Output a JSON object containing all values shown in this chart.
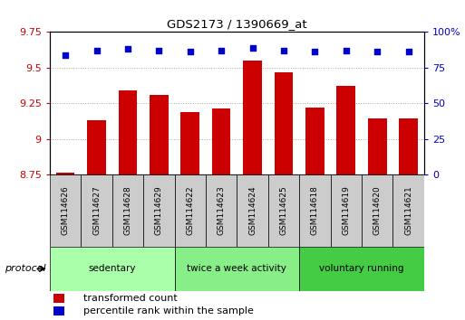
{
  "title": "GDS2173 / 1390669_at",
  "samples": [
    "GSM114626",
    "GSM114627",
    "GSM114628",
    "GSM114629",
    "GSM114622",
    "GSM114623",
    "GSM114624",
    "GSM114625",
    "GSM114618",
    "GSM114619",
    "GSM114620",
    "GSM114621"
  ],
  "transformed_count": [
    8.76,
    9.13,
    9.34,
    9.31,
    9.19,
    9.21,
    9.55,
    9.47,
    9.22,
    9.37,
    9.14,
    9.14
  ],
  "percentile_rank": [
    84,
    87,
    88,
    87,
    86,
    87,
    89,
    87,
    86,
    87,
    86,
    86
  ],
  "groups": [
    {
      "label": "sedentary",
      "indices": [
        0,
        1,
        2,
        3
      ],
      "color": "#aaffaa"
    },
    {
      "label": "twice a week activity",
      "indices": [
        4,
        5,
        6,
        7
      ],
      "color": "#88ee88"
    },
    {
      "label": "voluntary running",
      "indices": [
        8,
        9,
        10,
        11
      ],
      "color": "#44cc44"
    }
  ],
  "ylim_left": [
    8.75,
    9.75
  ],
  "ylim_right": [
    0,
    100
  ],
  "yticks_left": [
    8.75,
    9.0,
    9.25,
    9.5,
    9.75
  ],
  "yticks_right": [
    0,
    25,
    50,
    75,
    100
  ],
  "bar_color": "#cc0000",
  "dot_color": "#0000cc",
  "bar_width": 0.6,
  "background_color": "#ffffff",
  "sample_box_color": "#cccccc",
  "legend_red_label": "transformed count",
  "legend_blue_label": "percentile rank within the sample",
  "left_axis_color": "#cc0000",
  "right_axis_color": "#0000cc",
  "group_label": "protocol"
}
